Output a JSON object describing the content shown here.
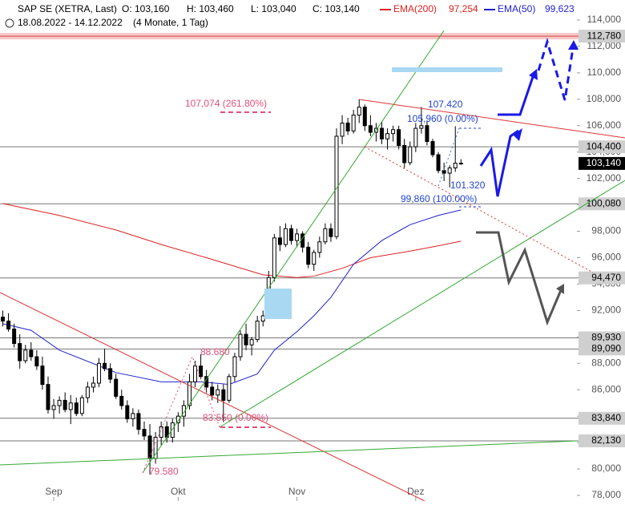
{
  "header": {
    "title": "SAP SE (XETRA, Last)",
    "open": "O: 103,160",
    "high": "H: 103,460",
    "low": "L: 103,040",
    "close": "C: 103,140",
    "ema200_value": "97,254",
    "ema50_value": "99,623",
    "period": "18.08.2022 - 14.12.2022",
    "span": "(4 Monate, 1 Tag)"
  },
  "annotations": [
    "107,074 (261.80%)",
    "107.420",
    "105,960 (0.00%)",
    "101.320",
    "99,860 (100.00%)",
    "88.680",
    "83.550 (0.00%)",
    "79.580"
  ],
  "chart_data": {
    "type": "candlestick",
    "xlim": [
      -0.5,
      101.5
    ],
    "xticks": [
      {
        "value": 9,
        "label": "Sep"
      },
      {
        "value": 31,
        "label": "Okt"
      },
      {
        "value": 52,
        "label": "Nov"
      },
      {
        "value": 73,
        "label": "Dez"
      }
    ],
    "ylim": [
      78,
      114
    ],
    "yticks": [
      {
        "value": 78,
        "label": "78,000"
      },
      {
        "value": 80,
        "label": "80,000"
      },
      {
        "value": 82,
        "label": "82,000"
      },
      {
        "value": 84,
        "label": "84,000"
      },
      {
        "value": 86,
        "label": "86,000"
      },
      {
        "value": 88,
        "label": "88,000"
      },
      {
        "value": 90,
        "label": "90,000"
      },
      {
        "value": 92,
        "label": "92,000"
      },
      {
        "value": 94,
        "label": "94,000"
      },
      {
        "value": 96,
        "label": "96,000"
      },
      {
        "value": 98,
        "label": "98,000"
      },
      {
        "value": 100,
        "label": "100,000"
      },
      {
        "value": 102,
        "label": "102,000"
      },
      {
        "value": 104,
        "label": "104,000"
      },
      {
        "value": 106,
        "label": "106,000"
      },
      {
        "value": 108,
        "label": "108,000"
      },
      {
        "value": 110,
        "label": "110,000"
      },
      {
        "value": 112,
        "label": "112,000"
      },
      {
        "value": 114,
        "label": "114,000"
      }
    ],
    "levels": [
      {
        "value": 112.78,
        "label": "112,780"
      },
      {
        "value": 104.4,
        "label": "104,400"
      },
      {
        "value": 100.08,
        "label": "100,080"
      },
      {
        "value": 94.47,
        "label": "94,470"
      },
      {
        "value": 89.93,
        "label": "89,930"
      },
      {
        "value": 89.09,
        "label": "89,090"
      },
      {
        "value": 83.84,
        "label": "83,840"
      },
      {
        "value": 82.13,
        "label": "82,130"
      }
    ],
    "last_price": {
      "value": 103.14,
      "label": "103,140"
    },
    "up_color": "#000000",
    "down_color": "#000000",
    "ohlc": [
      [
        91.5,
        92,
        90.8,
        91.2
      ],
      [
        91.2,
        91.8,
        90.4,
        90.6
      ],
      [
        90.6,
        91,
        89.2,
        89.5
      ],
      [
        89.5,
        90.2,
        87.6,
        88.2
      ],
      [
        88.2,
        89.4,
        88,
        89
      ],
      [
        89,
        89.6,
        88.2,
        88.5
      ],
      [
        88.5,
        89,
        87.5,
        87.8
      ],
      [
        87.8,
        88.5,
        86,
        86.4
      ],
      [
        86.4,
        87,
        84.2,
        84.5
      ],
      [
        84.5,
        85.3,
        83.8,
        84.8
      ],
      [
        84.8,
        85.5,
        84.2,
        85.2
      ],
      [
        85.2,
        85.8,
        84.3,
        84.5
      ],
      [
        84.5,
        85.6,
        83.4,
        85
      ],
      [
        85,
        85.4,
        84,
        84.2
      ],
      [
        84.2,
        85.6,
        84,
        85.4
      ],
      [
        85.4,
        86.6,
        85,
        86.2
      ],
      [
        86.2,
        87,
        85.8,
        86.5
      ],
      [
        86.5,
        88.4,
        86.2,
        88
      ],
      [
        88,
        89.1,
        87.4,
        87.6
      ],
      [
        87.6,
        88,
        86.5,
        86.8
      ],
      [
        86.8,
        87.2,
        85.3,
        85.5
      ],
      [
        85.5,
        86,
        84.5,
        84.8
      ],
      [
        84.8,
        85.2,
        83.5,
        83.8
      ],
      [
        83.8,
        84.6,
        83.2,
        84.2
      ],
      [
        84.2,
        84.5,
        82.6,
        83
      ],
      [
        83,
        83.6,
        82.2,
        82.5
      ],
      [
        82.5,
        83.4,
        79.58,
        80.8
      ],
      [
        80.8,
        82.8,
        80.4,
        82.4
      ],
      [
        82.4,
        83.6,
        81.8,
        83.2
      ],
      [
        83.2,
        83.6,
        82,
        82.4
      ],
      [
        82.4,
        83.8,
        82,
        83.5
      ],
      [
        83.5,
        84.3,
        82.8,
        84
      ],
      [
        84,
        85.2,
        83.2,
        84.8
      ],
      [
        84.8,
        87.2,
        84.5,
        86.6
      ],
      [
        86.6,
        88.2,
        86.2,
        87.8
      ],
      [
        87.8,
        88.68,
        86.8,
        87
      ],
      [
        87,
        87.5,
        85.8,
        86.2
      ],
      [
        86.2,
        86.6,
        85.2,
        85.6
      ],
      [
        85.6,
        86.4,
        85,
        86
      ],
      [
        86,
        86.4,
        83.55,
        85.2
      ],
      [
        85.2,
        87.2,
        85,
        87
      ],
      [
        87,
        88.8,
        86.6,
        88.5
      ],
      [
        88.5,
        90.5,
        88.2,
        90.2
      ],
      [
        90.2,
        91,
        89,
        89.4
      ],
      [
        89.4,
        90,
        88.6,
        89.8
      ],
      [
        89.8,
        91.6,
        89.6,
        91.2
      ],
      [
        91.2,
        92,
        90.8,
        91.6
      ],
      [
        91.6,
        95,
        91.4,
        94.5
      ],
      [
        94.5,
        97.8,
        94.2,
        97.5
      ],
      [
        97.5,
        98.4,
        96.5,
        97
      ],
      [
        97,
        98.6,
        96.8,
        98.2
      ],
      [
        98.2,
        98.5,
        97,
        97.3
      ],
      [
        97.3,
        98.2,
        96.8,
        97.8
      ],
      [
        97.8,
        98,
        96.4,
        96.8
      ],
      [
        96.8,
        97.2,
        95.2,
        95.5
      ],
      [
        95.5,
        96.6,
        95,
        96.4
      ],
      [
        96.4,
        97.6,
        96,
        97.2
      ],
      [
        97.2,
        98.6,
        97,
        98.2
      ],
      [
        98.2,
        98.6,
        97.2,
        97.6
      ],
      [
        97.6,
        105.8,
        97.4,
        105.2
      ],
      [
        105.2,
        106.8,
        104.6,
        106.2
      ],
      [
        106.2,
        106.6,
        105.3,
        105.6
      ],
      [
        105.6,
        107.2,
        105.4,
        106.8
      ],
      [
        106.8,
        108,
        106.2,
        107.4
      ],
      [
        107.4,
        107.6,
        105.6,
        106
      ],
      [
        106,
        106.8,
        105.2,
        105.5
      ],
      [
        105.5,
        106.2,
        104.8,
        105.8
      ],
      [
        105.8,
        106.3,
        104.6,
        105
      ],
      [
        105,
        105.8,
        104.2,
        105.4
      ],
      [
        105.4,
        106,
        104.8,
        105.7
      ],
      [
        105.7,
        106,
        104.2,
        104.5
      ],
      [
        104.5,
        105,
        102.8,
        103.2
      ],
      [
        103.2,
        104.8,
        103,
        104.4
      ],
      [
        104.4,
        106.2,
        104,
        105.8
      ],
      [
        105.8,
        107.42,
        105.4,
        106
      ],
      [
        106,
        106.4,
        104.5,
        104.8
      ],
      [
        104.8,
        105,
        103.6,
        103.8
      ],
      [
        103.8,
        104,
        102.4,
        102.6
      ],
      [
        102.6,
        103.2,
        101.8,
        102.4
      ],
      [
        102.4,
        103,
        101.32,
        102.8
      ],
      [
        102.8,
        105.96,
        102.5,
        103.16
      ],
      [
        103.16,
        103.46,
        103.04,
        103.14
      ]
    ],
    "series": [
      {
        "name": "EMA(200)",
        "color": "#dd2222",
        "x": [
          0,
          10,
          20,
          28,
          36,
          46,
          52,
          55,
          60,
          65,
          72,
          77,
          81
        ],
        "values": [
          100.1,
          99.2,
          98.1,
          97,
          96,
          94.7,
          94.5,
          94.6,
          95.2,
          96,
          96.5,
          96.9,
          97.25
        ]
      },
      {
        "name": "EMA(50)",
        "color": "#2222cc",
        "x": [
          0,
          5,
          10,
          20,
          28,
          35,
          40,
          45,
          48,
          52,
          55,
          58,
          62,
          67,
          72,
          77,
          81
        ],
        "values": [
          91,
          90.5,
          89,
          87.3,
          86.6,
          86.6,
          86.4,
          87.2,
          89,
          90.4,
          91.6,
          93,
          95.5,
          97.3,
          98.5,
          99.2,
          99.62
        ]
      }
    ]
  }
}
